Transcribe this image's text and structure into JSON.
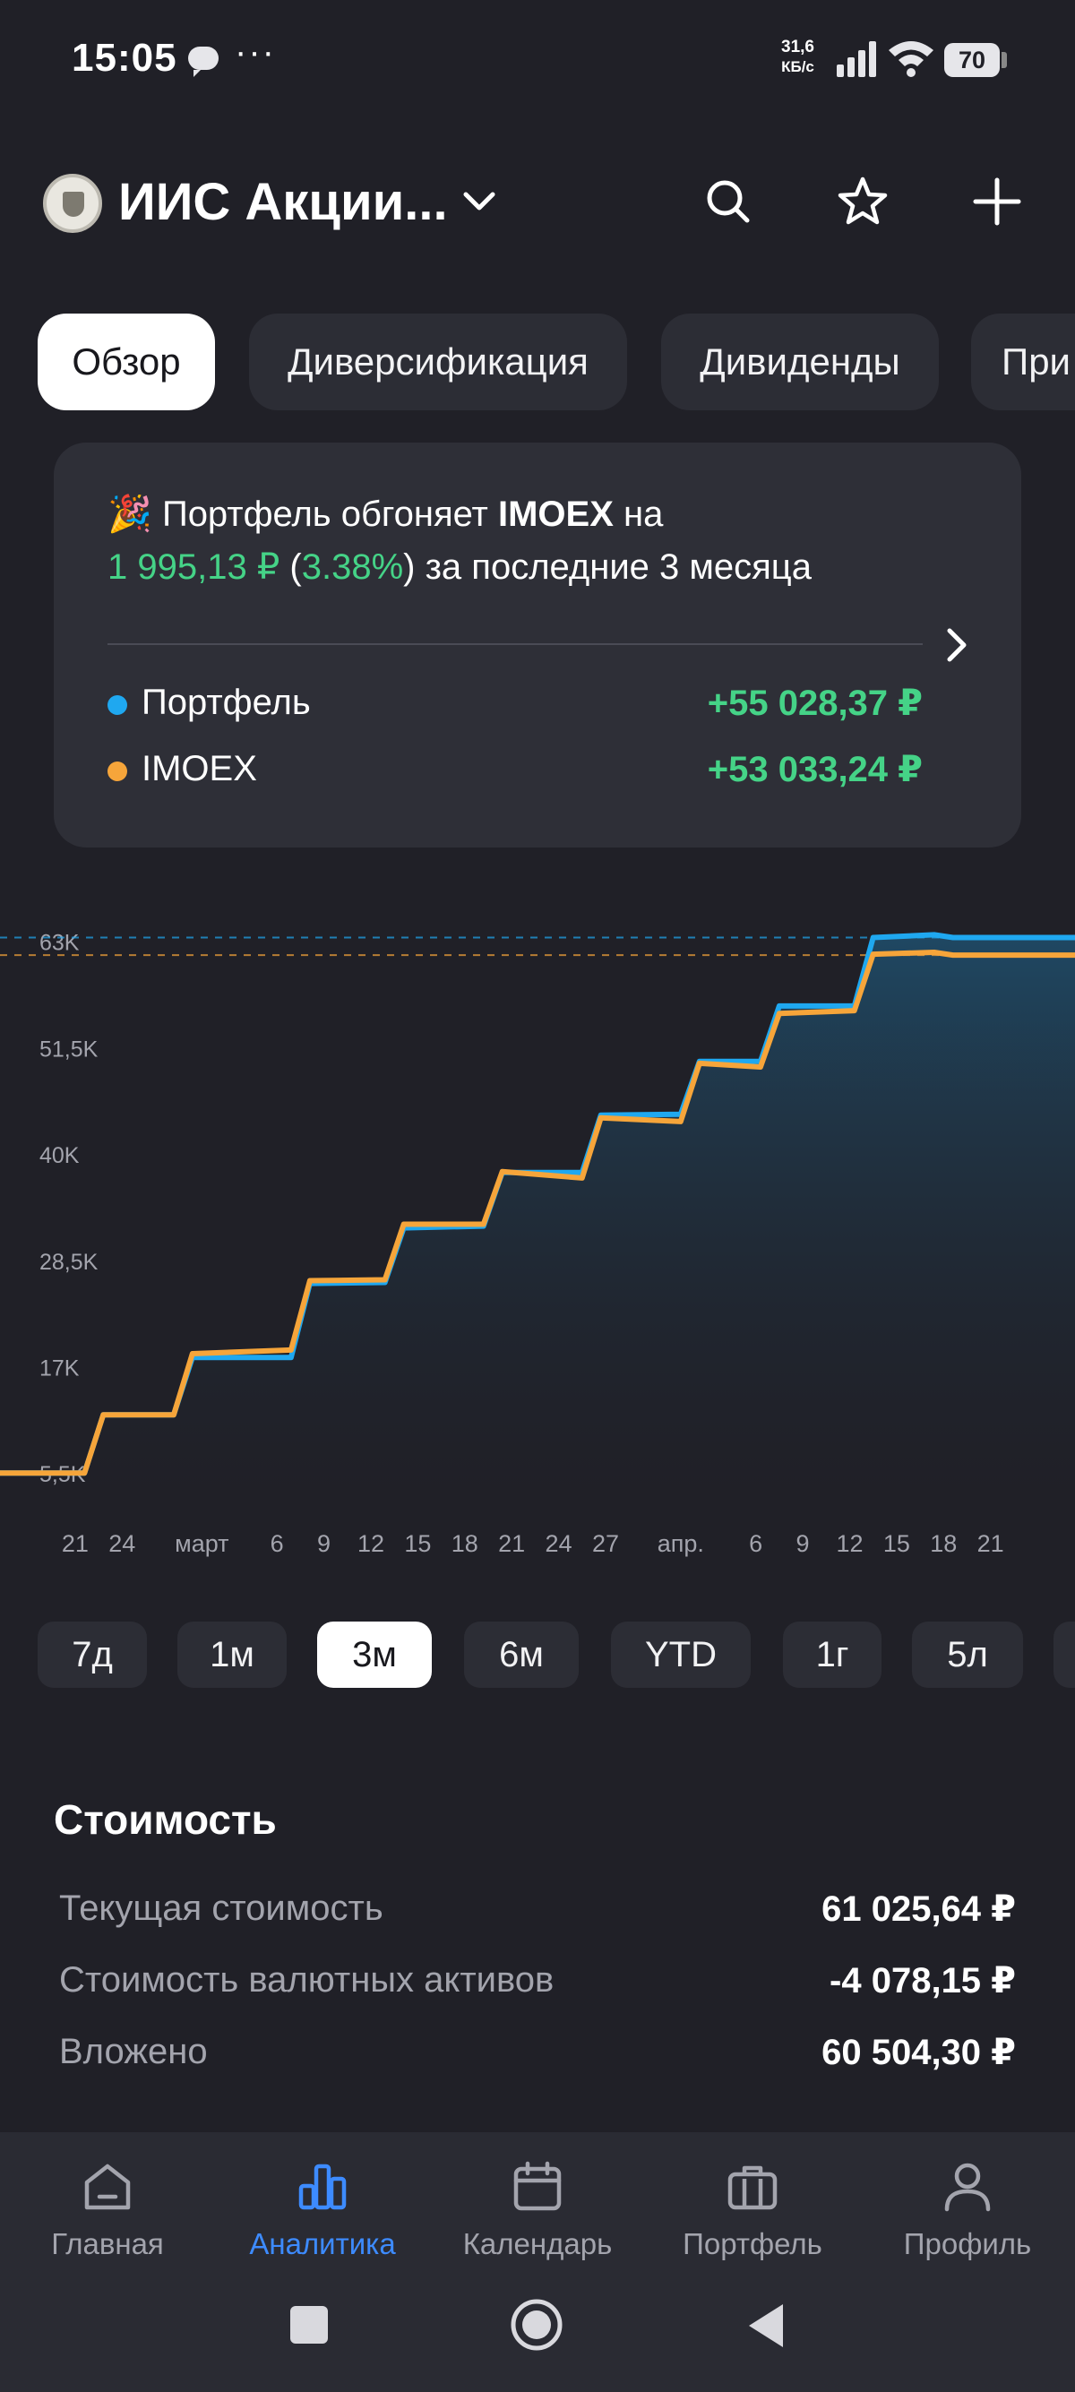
{
  "status_bar": {
    "time": "15:05",
    "dots": "···",
    "speed_value": "31,6",
    "speed_unit": "КБ/с",
    "battery": "70"
  },
  "header": {
    "account_title": "ИИС Акции...",
    "icons": [
      "search-icon",
      "star-icon",
      "plus-icon"
    ]
  },
  "tabs": [
    {
      "label": "Обзор",
      "active": true
    },
    {
      "label": "Диверсификация",
      "active": false
    },
    {
      "label": "Дивиденды",
      "active": false
    },
    {
      "label": "При",
      "active": false
    }
  ],
  "comparison": {
    "emoji": "🎉",
    "text_a": "Портфель обгоняет",
    "index_name": "IMOEX",
    "text_b": "на",
    "amount": "1 995,13 ₽",
    "percent": "3.38%",
    "period_text": "за последние 3 месяца",
    "portfolio_label": "Портфель",
    "portfolio_value": "+55 028,37 ₽",
    "index_label": "IMOEX",
    "index_value": "+53 033,24 ₽",
    "colors": {
      "portfolio": "#1fa8f0",
      "index": "#f6a53a",
      "positive": "#45d387"
    }
  },
  "chart_data": {
    "type": "line",
    "y_ticks": [
      "5,5K",
      "17K",
      "28,5K",
      "40K",
      "51,5K",
      "63K"
    ],
    "y_tick_values": [
      5500,
      17000,
      28500,
      40000,
      51500,
      63000
    ],
    "ylim": [
      3000,
      65000
    ],
    "x_ticks": [
      "21",
      "24",
      "март",
      "6",
      "9",
      "12",
      "15",
      "18",
      "21",
      "24",
      "27",
      "апр.",
      "6",
      "9",
      "12",
      "15",
      "18",
      "21"
    ],
    "x_tick_index": [
      0,
      1,
      2.7,
      4.3,
      5.3,
      6.3,
      7.3,
      8.3,
      9.3,
      10.3,
      11.3,
      12.9,
      14.5,
      15.5,
      16.5,
      17.5,
      18.5,
      19.5
    ],
    "x_range": [
      -1.6,
      21.3
    ],
    "series": [
      {
        "name": "Портфель",
        "color": "#1fa8f0",
        "points": [
          [
            -1.6,
            5500
          ],
          [
            0.2,
            5500
          ],
          [
            0.6,
            11800
          ],
          [
            2.1,
            11800
          ],
          [
            2.5,
            18000
          ],
          [
            4.6,
            18000
          ],
          [
            5.0,
            26000
          ],
          [
            6.6,
            26100
          ],
          [
            7.0,
            32000
          ],
          [
            8.7,
            32200
          ],
          [
            9.1,
            38000
          ],
          [
            10.8,
            38000
          ],
          [
            11.2,
            44200
          ],
          [
            12.9,
            44300
          ],
          [
            13.3,
            50000
          ],
          [
            14.6,
            50000
          ],
          [
            15.0,
            56000
          ],
          [
            16.6,
            56000
          ],
          [
            17.0,
            63400
          ],
          [
            18.3,
            63700
          ],
          [
            18.7,
            63400
          ],
          [
            20.3,
            63400
          ],
          [
            21.3,
            63400
          ]
        ]
      },
      {
        "name": "IMOEX",
        "color": "#f6a53a",
        "points": [
          [
            -1.6,
            5500
          ],
          [
            0.2,
            5500
          ],
          [
            0.6,
            11800
          ],
          [
            2.1,
            11800
          ],
          [
            2.5,
            18400
          ],
          [
            4.6,
            18800
          ],
          [
            5.0,
            26300
          ],
          [
            6.6,
            26400
          ],
          [
            7.0,
            32400
          ],
          [
            8.7,
            32400
          ],
          [
            9.1,
            38100
          ],
          [
            10.8,
            37400
          ],
          [
            11.2,
            43900
          ],
          [
            12.9,
            43500
          ],
          [
            13.3,
            49800
          ],
          [
            14.6,
            49400
          ],
          [
            15.0,
            55200
          ],
          [
            16.6,
            55500
          ],
          [
            17.0,
            61600
          ],
          [
            18.3,
            61800
          ],
          [
            18.7,
            61500
          ],
          [
            20.3,
            61500
          ],
          [
            21.3,
            61500
          ]
        ]
      }
    ],
    "reference_lines": [
      {
        "value": 63400,
        "color": "#1fa8f0"
      },
      {
        "value": 61500,
        "color": "#f6a53a"
      }
    ]
  },
  "periods": [
    {
      "label": "7д",
      "active": false
    },
    {
      "label": "1м",
      "active": false
    },
    {
      "label": "3м",
      "active": true
    },
    {
      "label": "6м",
      "active": false
    },
    {
      "label": "YTD",
      "active": false
    },
    {
      "label": "1г",
      "active": false
    },
    {
      "label": "5л",
      "active": false
    }
  ],
  "value_section": {
    "title": "Стоимость",
    "rows": [
      {
        "label": "Текущая стоимость",
        "value": "61 025,64 ₽"
      },
      {
        "label": "Стоимость валютных активов",
        "value": "-4 078,15 ₽"
      },
      {
        "label": "Вложено",
        "value": "60 504,30 ₽"
      }
    ]
  },
  "bottom_nav": [
    {
      "label": "Главная",
      "icon": "home-icon",
      "active": false
    },
    {
      "label": "Аналитика",
      "icon": "chart-icon",
      "active": true
    },
    {
      "label": "Календарь",
      "icon": "calendar-icon",
      "active": false
    },
    {
      "label": "Портфель",
      "icon": "briefcase-icon",
      "active": false
    },
    {
      "label": "Профиль",
      "icon": "profile-icon",
      "active": false
    }
  ],
  "system_nav": [
    "recents-button",
    "home-button",
    "back-button"
  ]
}
